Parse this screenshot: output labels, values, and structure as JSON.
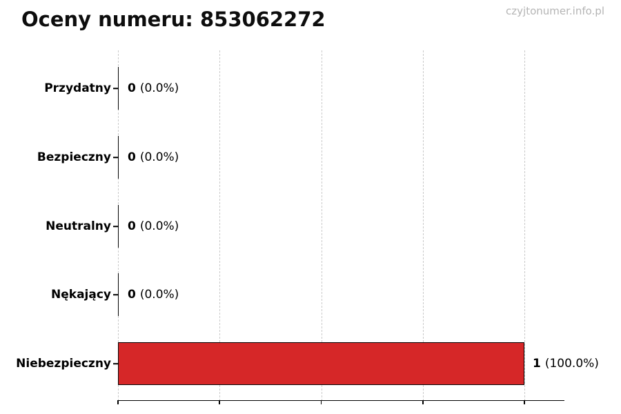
{
  "page": {
    "watermark": "czyjtonumer.info.pl"
  },
  "chart_data": {
    "type": "bar",
    "orientation": "horizontal",
    "title": "Oceny numeru: 853062272",
    "categories": [
      "Przydatny",
      "Bezpieczny",
      "Neutralny",
      "Nękający",
      "Niebezpieczny"
    ],
    "values": [
      0,
      0,
      0,
      0,
      1
    ],
    "rows": [
      {
        "label": "Przydatny",
        "value": 0,
        "count": "0",
        "percent": "(0.0%)"
      },
      {
        "label": "Bezpieczny",
        "value": 0,
        "count": "0",
        "percent": "(0.0%)"
      },
      {
        "label": "Neutralny",
        "value": 0,
        "count": "0",
        "percent": "(0.0%)"
      },
      {
        "label": "Nękający",
        "value": 0,
        "count": "0",
        "percent": "(0.0%)"
      },
      {
        "label": "Niebezpieczny",
        "value": 1,
        "count": "1",
        "percent": "(100.0%)"
      }
    ],
    "xlabel": "",
    "ylabel": "",
    "xlim": [
      0,
      1.1
    ],
    "x_gridlines": [
      0,
      0.25,
      0.5,
      0.75,
      1.0
    ],
    "x_tick_labels_visible": false,
    "grid": "vertical-dashed",
    "legend": "none",
    "colors": {
      "bar": "#d62728",
      "bar_edge": "#000000",
      "grid": "#c9c9c9",
      "axis": "#000000",
      "text": "#000000",
      "watermark": "#b4b4b4"
    }
  }
}
